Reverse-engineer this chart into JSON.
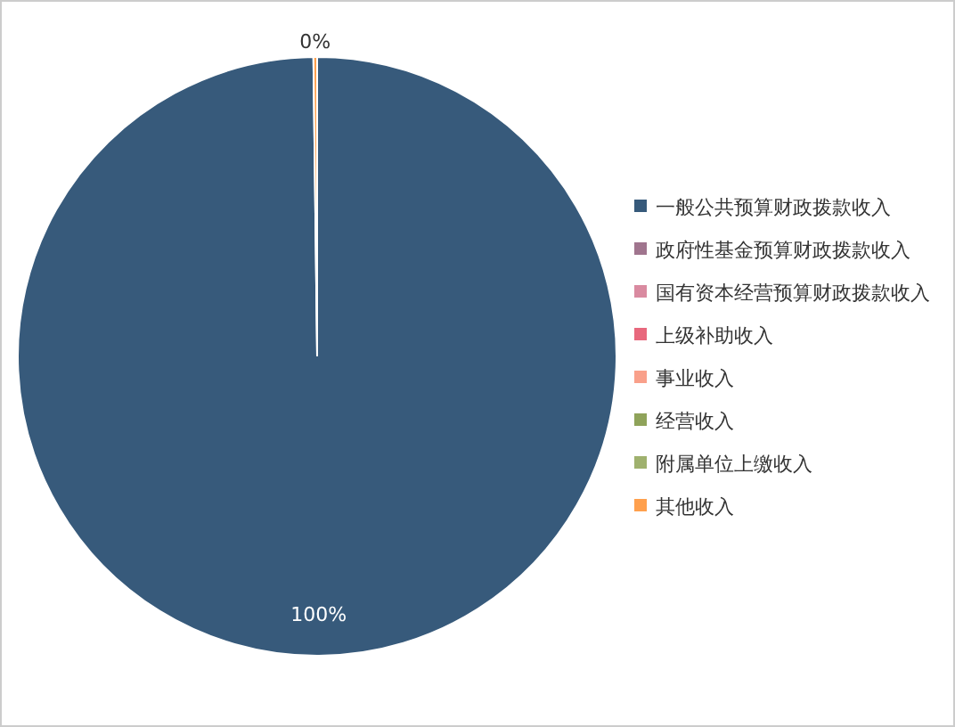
{
  "chart_data": {
    "type": "pie",
    "categories": [
      "一般公共预算财政拨款收入",
      "政府性基金预算财政拨款收入",
      "国有资本经营预算财政拨款收入",
      "上级补助收入",
      "事业收入",
      "经营收入",
      "附属单位上缴收入",
      "其他收入"
    ],
    "values": [
      99.8,
      0,
      0,
      0,
      0,
      0,
      0,
      0.2
    ],
    "colors": [
      "#375a7b",
      "#a0758e",
      "#d98aa0",
      "#e8687d",
      "#f9a08a",
      "#8fa35a",
      "#9fb16e",
      "#ffa04d"
    ],
    "value_labels": [
      "100%",
      null,
      null,
      null,
      null,
      null,
      null,
      "0%"
    ],
    "legend": "right"
  }
}
